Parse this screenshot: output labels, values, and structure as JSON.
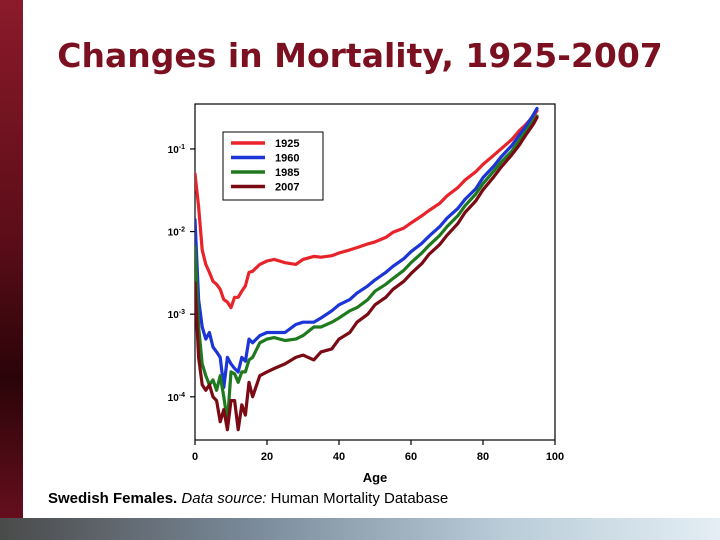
{
  "slide": {
    "title": "Changes in Mortality, 1925-2007",
    "caption_bold": "Swedish Females.",
    "caption_italic": "Data source:",
    "caption_rest": " Human Mortality Database"
  },
  "chart_data": {
    "type": "line",
    "title": "",
    "xlabel": "Age",
    "ylabel": "",
    "y_scale": "log",
    "xlim": [
      0,
      100
    ],
    "ylim": [
      3e-05,
      0.35
    ],
    "x_ticks": [
      0,
      20,
      40,
      60,
      80,
      100
    ],
    "y_ticks": [
      {
        "value": 0.1,
        "base": "10",
        "exp": "-1"
      },
      {
        "value": 0.01,
        "base": "10",
        "exp": "-2"
      },
      {
        "value": 0.001,
        "base": "10",
        "exp": "-3"
      },
      {
        "value": 0.0001,
        "base": "10",
        "exp": "-4"
      }
    ],
    "legend_position": "top-left",
    "series": [
      {
        "name": "1925",
        "color": "#e8232a",
        "x": [
          0,
          1,
          2,
          3,
          4,
          5,
          6,
          7,
          8,
          9,
          10,
          11,
          12,
          13,
          14,
          15,
          16,
          18,
          20,
          22,
          25,
          28,
          30,
          33,
          35,
          38,
          40,
          43,
          45,
          48,
          50,
          53,
          55,
          58,
          60,
          63,
          65,
          68,
          70,
          73,
          75,
          78,
          80,
          83,
          85,
          88,
          90,
          92,
          94,
          95
        ],
        "y": [
          0.05,
          0.02,
          0.006,
          0.004,
          0.0032,
          0.0025,
          0.0023,
          0.002,
          0.0015,
          0.0014,
          0.0012,
          0.0016,
          0.0016,
          0.0019,
          0.0022,
          0.0032,
          0.0033,
          0.004,
          0.0044,
          0.0046,
          0.0042,
          0.004,
          0.0046,
          0.005,
          0.0049,
          0.0051,
          0.0055,
          0.006,
          0.0064,
          0.0071,
          0.0075,
          0.0085,
          0.0098,
          0.011,
          0.0127,
          0.0155,
          0.018,
          0.022,
          0.027,
          0.034,
          0.042,
          0.053,
          0.065,
          0.084,
          0.1,
          0.13,
          0.165,
          0.2,
          0.25,
          0.29
        ]
      },
      {
        "name": "1960",
        "color": "#1b35d6",
        "x": [
          0,
          1,
          2,
          3,
          4,
          5,
          6,
          7,
          8,
          9,
          10,
          11,
          12,
          13,
          14,
          15,
          16,
          18,
          20,
          22,
          25,
          28,
          30,
          33,
          35,
          38,
          40,
          43,
          45,
          48,
          50,
          53,
          55,
          58,
          60,
          63,
          65,
          68,
          70,
          73,
          75,
          78,
          80,
          83,
          85,
          88,
          90,
          92,
          94,
          95
        ],
        "y": [
          0.014,
          0.0015,
          0.0007,
          0.0005,
          0.0006,
          0.0004,
          0.00035,
          0.0003,
          0.00013,
          0.0003,
          0.00025,
          0.00022,
          0.0002,
          0.0003,
          0.00027,
          0.0005,
          0.00045,
          0.00055,
          0.0006,
          0.0006,
          0.0006,
          0.00075,
          0.0008,
          0.0008,
          0.0009,
          0.0011,
          0.0013,
          0.0015,
          0.0018,
          0.0022,
          0.0026,
          0.0032,
          0.0038,
          0.0047,
          0.0057,
          0.0072,
          0.0088,
          0.0115,
          0.0145,
          0.019,
          0.0245,
          0.033,
          0.045,
          0.062,
          0.08,
          0.11,
          0.145,
          0.19,
          0.26,
          0.31
        ]
      },
      {
        "name": "1985",
        "color": "#1f7a1f",
        "x": [
          0,
          1,
          2,
          3,
          4,
          5,
          6,
          7,
          8,
          9,
          10,
          11,
          12,
          13,
          14,
          15,
          16,
          18,
          20,
          22,
          25,
          28,
          30,
          33,
          35,
          38,
          40,
          43,
          45,
          48,
          50,
          53,
          55,
          58,
          60,
          63,
          65,
          68,
          70,
          73,
          75,
          78,
          80,
          83,
          85,
          88,
          90,
          92,
          94,
          95
        ],
        "y": [
          0.0065,
          0.0007,
          0.00025,
          0.00018,
          0.00014,
          0.00016,
          0.00012,
          0.00018,
          0.0001,
          5e-05,
          0.0002,
          0.00019,
          0.00015,
          0.0002,
          0.0002,
          0.00028,
          0.0003,
          0.00045,
          0.0005,
          0.00052,
          0.00048,
          0.0005,
          0.00055,
          0.0007,
          0.0007,
          0.0008,
          0.0009,
          0.0011,
          0.0012,
          0.0015,
          0.0019,
          0.0023,
          0.0027,
          0.0034,
          0.0042,
          0.0055,
          0.0068,
          0.009,
          0.0115,
          0.0155,
          0.0205,
          0.0285,
          0.038,
          0.054,
          0.069,
          0.094,
          0.125,
          0.165,
          0.22,
          0.25
        ]
      },
      {
        "name": "2007",
        "color": "#7a0a14",
        "x": [
          0,
          1,
          2,
          3,
          4,
          5,
          6,
          7,
          8,
          9,
          10,
          11,
          12,
          13,
          14,
          15,
          16,
          18,
          20,
          22,
          25,
          28,
          30,
          33,
          35,
          38,
          40,
          43,
          45,
          48,
          50,
          53,
          55,
          58,
          60,
          63,
          65,
          68,
          70,
          73,
          75,
          78,
          80,
          83,
          85,
          88,
          90,
          92,
          94,
          95
        ],
        "y": [
          0.0024,
          0.0003,
          0.00014,
          0.00012,
          0.00014,
          0.0001,
          9e-05,
          5e-05,
          7e-05,
          4e-05,
          9e-05,
          9e-05,
          4e-05,
          8e-05,
          6e-05,
          0.00015,
          0.0001,
          0.00018,
          0.0002,
          0.00022,
          0.00025,
          0.0003,
          0.00032,
          0.00028,
          0.00035,
          0.00038,
          0.0005,
          0.0006,
          0.0008,
          0.001,
          0.0013,
          0.0016,
          0.002,
          0.0025,
          0.0031,
          0.0041,
          0.0053,
          0.007,
          0.009,
          0.0125,
          0.017,
          0.0235,
          0.032,
          0.046,
          0.06,
          0.085,
          0.11,
          0.15,
          0.2,
          0.24
        ]
      }
    ]
  }
}
